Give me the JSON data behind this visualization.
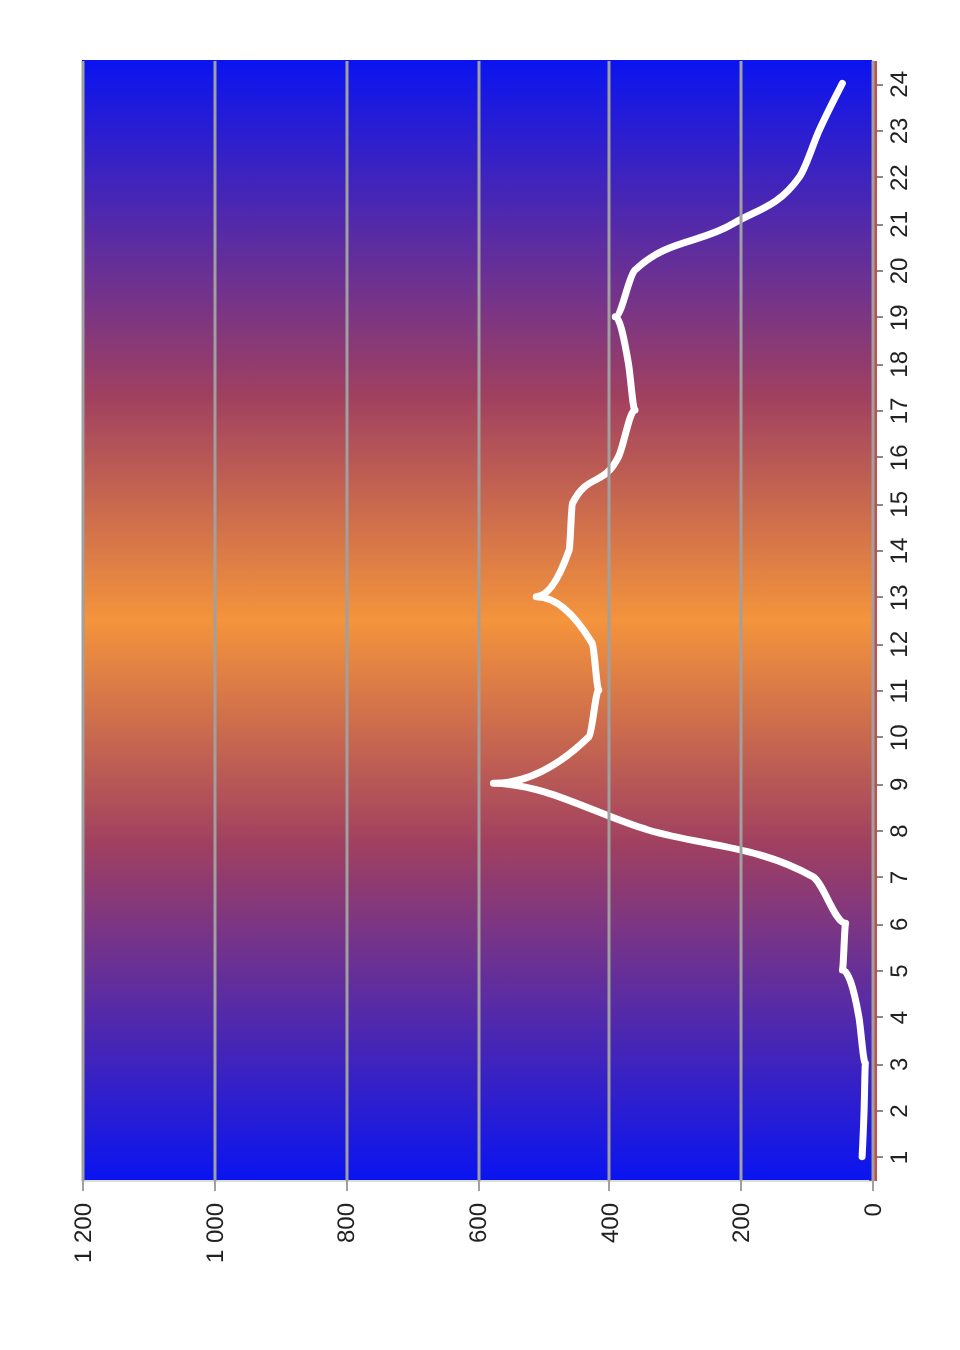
{
  "chart_data": {
    "type": "line",
    "orientation": "horizontal",
    "categories": [
      "24",
      "23",
      "22",
      "21",
      "20",
      "19",
      "18",
      "17",
      "16",
      "15",
      "14",
      "13",
      "12",
      "11",
      "10",
      "9",
      "8",
      "7",
      "6",
      "5",
      "4",
      "3",
      "2",
      "1"
    ],
    "values": [
      45,
      80,
      110,
      210,
      360,
      390,
      370,
      360,
      385,
      455,
      460,
      510,
      425,
      415,
      430,
      575,
      340,
      90,
      40,
      45,
      20,
      10,
      12,
      15
    ],
    "color": "#ffffff",
    "xlim": [
      1200,
      0
    ],
    "xticks": [
      {
        "value": 1200,
        "label": "1 200"
      },
      {
        "value": 1000,
        "label": "1 000"
      },
      800,
      600,
      400,
      200,
      0
    ],
    "grid": "x"
  }
}
